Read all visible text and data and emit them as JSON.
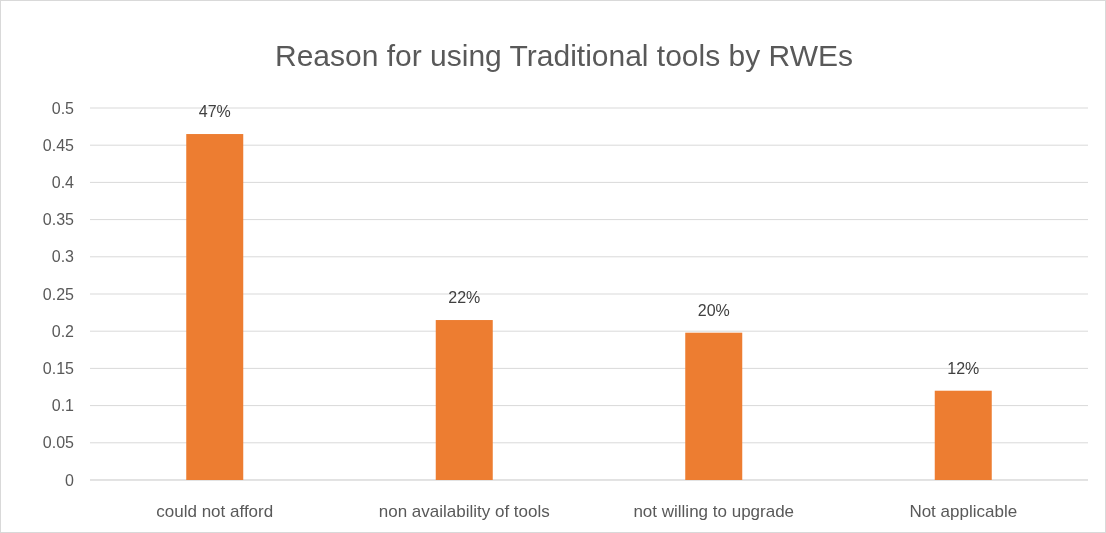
{
  "chart_data": {
    "type": "bar",
    "title": "Reason for using Traditional tools by RWEs",
    "categories": [
      "could not afford",
      "non availability of tools",
      "not willing to upgrade",
      "Not applicable"
    ],
    "values": [
      0.465,
      0.215,
      0.198,
      0.12
    ],
    "value_labels": [
      "47%",
      "22%",
      "20%",
      "12%"
    ],
    "color": "#ed7d31",
    "ylim": [
      0,
      0.5
    ],
    "yticks": [
      0,
      0.05,
      0.1,
      0.15,
      0.2,
      0.25,
      0.3,
      0.35,
      0.4,
      0.45,
      0.5
    ],
    "grid": "y"
  }
}
